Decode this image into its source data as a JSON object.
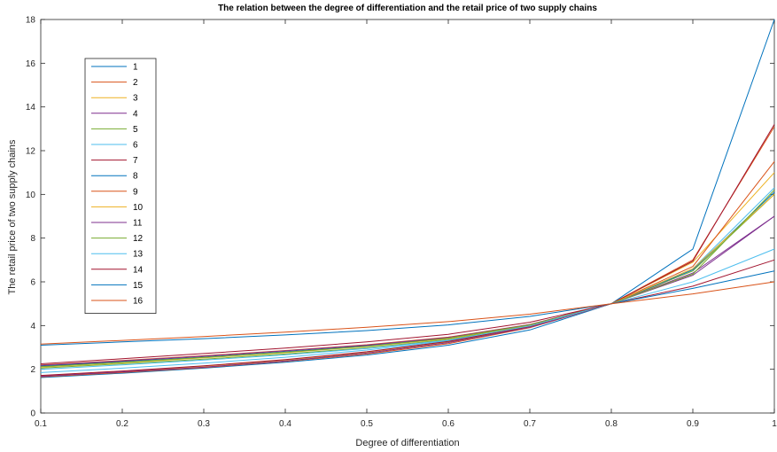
{
  "chart_data": {
    "type": "line",
    "title": "The relation between the degree of differentiation and the retail price of two supply chains",
    "xlabel": "Degree of differentiation",
    "ylabel": "The retail price of two supply chains",
    "xlim": [
      0.1,
      1
    ],
    "ylim": [
      0,
      18
    ],
    "xticks": [
      "0.1",
      "0.2",
      "0.3",
      "0.4",
      "0.5",
      "0.6",
      "0.7",
      "0.8",
      "0.9",
      "1"
    ],
    "yticks": [
      "0",
      "2",
      "4",
      "6",
      "8",
      "10",
      "12",
      "14",
      "16",
      "18"
    ],
    "grid": false,
    "legend_position": "top-left",
    "x": [
      0.1,
      0.2,
      0.3,
      0.4,
      0.5,
      0.6,
      0.7,
      0.8,
      0.9,
      1.0
    ],
    "series": [
      {
        "name": "1",
        "color": "#0072BD",
        "values": [
          1.62,
          1.82,
          2.05,
          2.32,
          2.65,
          3.1,
          3.8,
          5.0,
          7.5,
          18.0
        ]
      },
      {
        "name": "2",
        "color": "#D95319",
        "values": [
          1.65,
          1.85,
          2.08,
          2.36,
          2.7,
          3.17,
          3.9,
          5.0,
          7.0,
          13.1
        ]
      },
      {
        "name": "3",
        "color": "#EDB120",
        "values": [
          1.7,
          1.9,
          2.14,
          2.42,
          2.78,
          3.25,
          3.95,
          5.0,
          6.9,
          11.0
        ]
      },
      {
        "name": "4",
        "color": "#7E2F8E",
        "values": [
          1.68,
          1.88,
          2.1,
          2.38,
          2.74,
          3.22,
          3.92,
          5.0,
          6.3,
          9.0
        ]
      },
      {
        "name": "5",
        "color": "#77AC30",
        "values": [
          2.05,
          2.25,
          2.46,
          2.7,
          2.98,
          3.36,
          4.0,
          5.0,
          6.5,
          10.0
        ]
      },
      {
        "name": "6",
        "color": "#4DBEEE",
        "values": [
          1.85,
          2.05,
          2.28,
          2.55,
          2.88,
          3.3,
          3.98,
          5.0,
          6.6,
          10.3
        ]
      },
      {
        "name": "7",
        "color": "#A2142F",
        "values": [
          1.72,
          1.92,
          2.16,
          2.44,
          2.8,
          3.27,
          3.96,
          5.0,
          6.95,
          13.2
        ]
      },
      {
        "name": "8",
        "color": "#0072BD",
        "values": [
          2.15,
          2.35,
          2.56,
          2.8,
          3.07,
          3.43,
          4.02,
          5.0,
          6.55,
          10.1
        ]
      },
      {
        "name": "9",
        "color": "#D95319",
        "values": [
          2.2,
          2.4,
          2.62,
          2.86,
          3.12,
          3.47,
          4.05,
          5.0,
          6.7,
          11.5
        ]
      },
      {
        "name": "10",
        "color": "#EDB120",
        "values": [
          2.1,
          2.3,
          2.52,
          2.76,
          3.04,
          3.4,
          4.02,
          5.0,
          6.6,
          10.0
        ]
      },
      {
        "name": "11",
        "color": "#7E2F8E",
        "values": [
          2.18,
          2.38,
          2.6,
          2.84,
          3.1,
          3.45,
          4.04,
          5.0,
          6.4,
          9.0
        ]
      },
      {
        "name": "12",
        "color": "#77AC30",
        "values": [
          2.12,
          2.32,
          2.54,
          2.78,
          3.05,
          3.42,
          4.03,
          5.0,
          6.35,
          10.2
        ]
      },
      {
        "name": "13",
        "color": "#4DBEEE",
        "values": [
          2.0,
          2.2,
          2.42,
          2.66,
          2.95,
          3.33,
          3.98,
          5.0,
          6.0,
          7.5
        ]
      },
      {
        "name": "14",
        "color": "#A2142F",
        "values": [
          2.25,
          2.48,
          2.72,
          2.97,
          3.25,
          3.6,
          4.15,
          5.0,
          5.8,
          7.0
        ]
      },
      {
        "name": "15",
        "color": "#0072BD",
        "values": [
          3.1,
          3.25,
          3.4,
          3.57,
          3.77,
          4.03,
          4.42,
          5.0,
          5.7,
          6.5
        ]
      },
      {
        "name": "16",
        "color": "#D95319",
        "values": [
          3.15,
          3.32,
          3.5,
          3.7,
          3.92,
          4.18,
          4.52,
          5.0,
          5.45,
          6.0
        ]
      }
    ]
  }
}
